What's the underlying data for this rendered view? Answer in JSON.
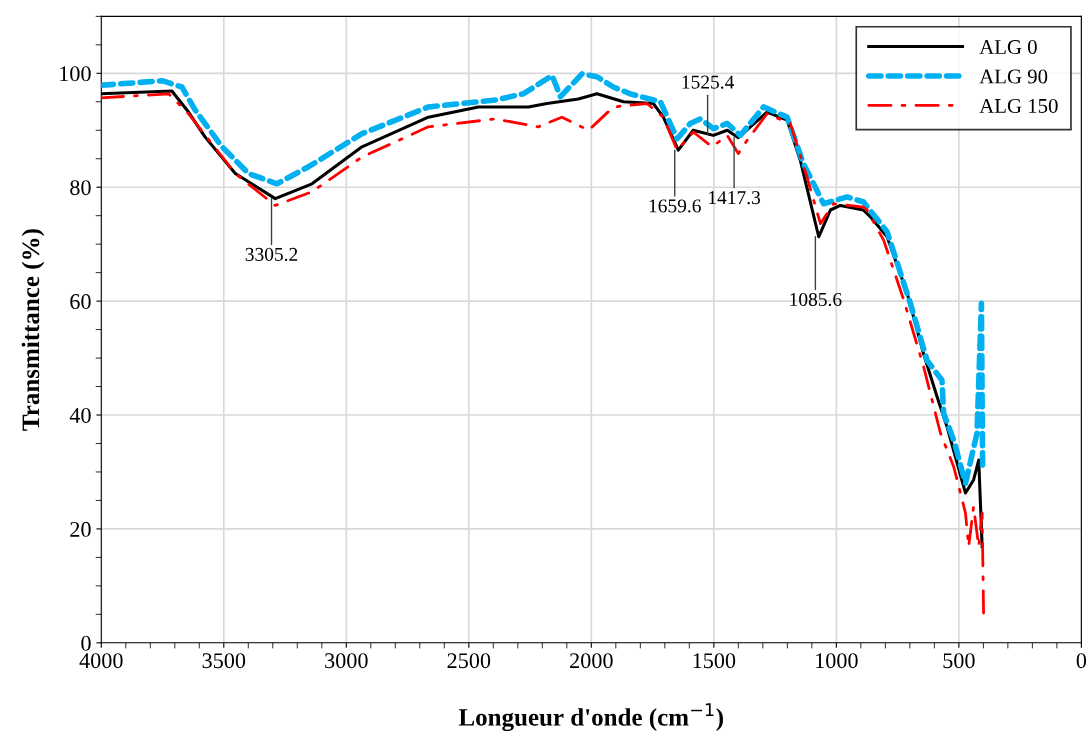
{
  "chart_data": {
    "type": "line",
    "xlabel": "Longueur d'onde (cm$^{−1}$)",
    "ylabel": "Transmittance (%)",
    "xlim": [
      4000,
      0
    ],
    "xticks": [
      4000,
      3500,
      3000,
      2500,
      2000,
      1500,
      1000,
      500,
      0
    ],
    "ylim": [
      0,
      110
    ],
    "yticks": [
      0,
      20,
      40,
      60,
      80,
      100
    ],
    "grid": true,
    "legend": "top right",
    "series": [
      {
        "name": "ALG 0",
        "color": "#000000",
        "line_style": "solid",
        "x": [
          4000,
          3712,
          3644,
          3576,
          3453,
          3290,
          3140,
          2936,
          2665,
          2461,
          2257,
          2181,
          2053,
          1977,
          1869,
          1747,
          1706,
          1645,
          1584,
          1502,
          1445,
          1400,
          1283,
          1201,
          1147,
          1072,
          1024,
          984,
          890,
          861,
          793,
          711,
          645,
          589,
          548,
          473,
          440,
          419,
          405
        ],
        "values": [
          96.4,
          96.9,
          93.2,
          88.8,
          82.4,
          78.0,
          80.6,
          87.1,
          92.3,
          94.1,
          94.1,
          94.7,
          95.5,
          96.4,
          95.0,
          94.7,
          92.3,
          86.5,
          90.0,
          89.1,
          90.0,
          88.7,
          93.2,
          91.8,
          84.7,
          71.3,
          76.0,
          76.8,
          76.0,
          74.8,
          71.3,
          61.4,
          50.9,
          43.2,
          37.9,
          26.3,
          28.6,
          32.1,
          16.9
        ]
      },
      {
        "name": "ALG 90",
        "color": "#00b0f0",
        "line_style": "dashed",
        "x": [
          4000,
          3752,
          3671,
          3616,
          3507,
          3399,
          3283,
          3154,
          2936,
          2665,
          2392,
          2278,
          2160,
          2126,
          2038,
          1977,
          1910,
          1841,
          1718,
          1650,
          1596,
          1555,
          1502,
          1445,
          1392,
          1297,
          1201,
          1135,
          1052,
          956,
          889,
          793,
          698,
          630,
          569,
          562,
          521,
          473,
          426,
          408,
          403
        ],
        "values": [
          97.9,
          98.7,
          97.6,
          93.5,
          87.1,
          82.4,
          80.6,
          83.6,
          89.4,
          94.1,
          95.3,
          96.4,
          99.6,
          95.9,
          99.9,
          99.4,
          97.6,
          96.4,
          95.0,
          88.5,
          91.2,
          92.0,
          90.3,
          91.2,
          89.1,
          94.1,
          92.3,
          84.2,
          77.1,
          78.3,
          77.4,
          72.2,
          59.6,
          49.6,
          46.1,
          40.3,
          35.6,
          28.0,
          36.8,
          59.6,
          30.9
        ]
      },
      {
        "name": "ALG 150",
        "color": "#ff0000",
        "line_style": "dashdot",
        "x": [
          4000,
          3725,
          3644,
          3453,
          3290,
          3140,
          2936,
          2665,
          2392,
          2216,
          2120,
          2011,
          1910,
          1773,
          1706,
          1650,
          1584,
          1507,
          1445,
          1400,
          1365,
          1283,
          1188,
          1120,
          1065,
          1011,
          890,
          875,
          807,
          725,
          644,
          575,
          521,
          473,
          460,
          440,
          419,
          405,
          399
        ],
        "values": [
          95.7,
          96.4,
          92.9,
          82.4,
          76.8,
          79.2,
          85.3,
          90.6,
          92.0,
          90.6,
          92.3,
          90.0,
          94.1,
          94.7,
          92.3,
          86.5,
          89.7,
          87.1,
          89.1,
          85.9,
          88.2,
          92.9,
          91.2,
          81.8,
          73.6,
          77.1,
          76.5,
          76.0,
          70.7,
          60.2,
          48.5,
          36.8,
          30.9,
          22.8,
          16.9,
          23.9,
          16.9,
          22.8,
          4.6
        ]
      }
    ],
    "annotations": [
      {
        "text": "3305.2",
        "x": 3305.2,
        "y": 78.0
      },
      {
        "text": "1659.6",
        "x": 1659.6,
        "y": 86.5
      },
      {
        "text": "1525.4",
        "x": 1525.4,
        "y": 89.3
      },
      {
        "text": "1417.3",
        "x": 1417.3,
        "y": 88.7
      },
      {
        "text": "1085.6",
        "x": 1085.6,
        "y": 71.3
      }
    ]
  }
}
